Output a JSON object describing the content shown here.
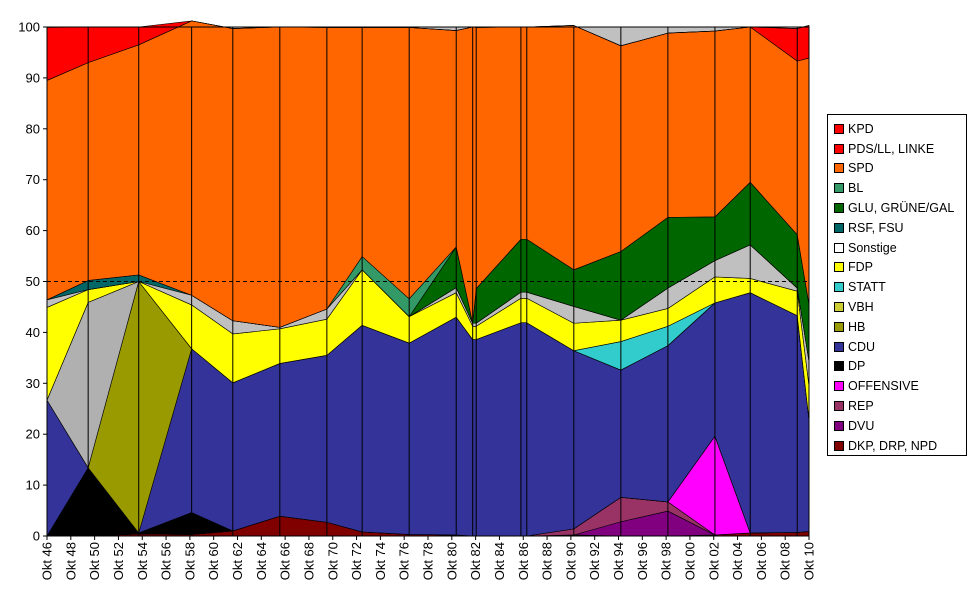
{
  "chart_data": {
    "type": "area",
    "stacked": true,
    "ylim": [
      0,
      100
    ],
    "yticks": [
      0,
      10,
      20,
      30,
      40,
      50,
      60,
      70,
      80,
      90,
      100
    ],
    "reference_line": 50,
    "x": [
      "Okt 46",
      "Okt 49",
      "Okt 53",
      "Okt 57",
      "Okt 61",
      "Okt 65",
      "Okt 69",
      "Okt 72",
      "Okt 76",
      "Okt 80",
      "Okt 82a",
      "Okt 82b",
      "Okt 86a",
      "Okt 86b",
      "Okt 90",
      "Okt 94",
      "Okt 98",
      "Okt 02",
      "Okt 05",
      "Okt 09",
      "Okt 10"
    ],
    "x_positions": [
      46,
      49.5,
      53.8,
      58.3,
      61.8,
      65.8,
      69.8,
      72.8,
      76.8,
      80.8,
      82.2,
      82.5,
      86.3,
      86.8,
      90.8,
      94.8,
      98.8,
      102.8,
      105.8,
      109.8,
      110.8
    ],
    "tick_labels": [
      "Okt 46",
      "Okt 48",
      "Okt 50",
      "Okt 52",
      "Okt 54",
      "Okt 56",
      "Okt 58",
      "Okt 60",
      "Okt 62",
      "Okt 64",
      "Okt 66",
      "Okt 68",
      "Okt 70",
      "Okt 72",
      "Okt 74",
      "Okt 76",
      "Okt 78",
      "Okt 80",
      "Okt 82",
      "Okt 84",
      "Okt 86",
      "Okt 88",
      "Okt 90",
      "Okt 92",
      "Okt 94",
      "Okt 96",
      "Okt 98",
      "Okt 00",
      "Okt 02",
      "Okt 04",
      "Okt 06",
      "Okt 08",
      "Okt 10"
    ],
    "series": [
      {
        "name": "DKP, DRP, NPD",
        "color": "#800000",
        "values": [
          0,
          0,
          0.4,
          0.3,
          1,
          3.9,
          2.7,
          0.8,
          0.3,
          0.2,
          0,
          0,
          0,
          0,
          0.2,
          0,
          0,
          0.2,
          0.6,
          0.7,
          0.9
        ]
      },
      {
        "name": "DVU",
        "color": "#800080",
        "values": [
          0,
          0,
          0,
          0,
          0,
          0,
          0,
          0,
          0,
          0,
          0,
          0,
          0,
          0,
          0,
          2.8,
          4.9,
          0,
          0,
          0,
          0
        ]
      },
      {
        "name": "REP",
        "color": "#993366",
        "values": [
          0,
          0,
          0,
          0,
          0,
          0,
          0,
          0,
          0,
          0,
          0,
          0,
          0,
          0,
          1.2,
          4.8,
          1.8,
          0,
          0,
          0,
          0
        ]
      },
      {
        "name": "OFFENSIVE",
        "color": "#ff00ff",
        "values": [
          0,
          0,
          0,
          0,
          0,
          0,
          0,
          0,
          0,
          0,
          0,
          0,
          0,
          0,
          0,
          0,
          0,
          19.4,
          0,
          0,
          0
        ]
      },
      {
        "name": "DP",
        "color": "#000000",
        "values": [
          0,
          13.4,
          0.2,
          4.3,
          0,
          0,
          0,
          0,
          0,
          0,
          0,
          0,
          0,
          0,
          0,
          0,
          0,
          0,
          0,
          0,
          0
        ]
      },
      {
        "name": "CDU",
        "color": "#333399",
        "values": [
          26.7,
          0,
          0,
          32.2,
          29.1,
          30,
          32.8,
          40.6,
          37.6,
          42.8,
          38.6,
          38.6,
          41.9,
          41.9,
          35,
          25,
          30.7,
          26.2,
          47.2,
          42.6,
          21.9
        ]
      },
      {
        "name": "HB",
        "color": "#999900",
        "values": [
          0,
          0,
          49.4,
          0,
          0,
          0,
          0,
          0,
          0,
          0,
          0,
          0,
          0,
          0,
          0,
          0,
          0,
          0,
          0,
          0,
          0
        ]
      },
      {
        "name": "VBH",
        "color": "#b0b0b0",
        "values": [
          0,
          32.5,
          0,
          0,
          0,
          0,
          0,
          0,
          0,
          0,
          0,
          0,
          0,
          0,
          0,
          0,
          0,
          0,
          0,
          0,
          0
        ]
      },
      {
        "name": "STATT",
        "color": "#33cccc",
        "values": [
          0,
          0,
          0,
          0,
          0,
          0,
          0,
          0,
          0,
          0,
          0,
          0,
          0,
          0,
          0,
          5.6,
          3.8,
          0,
          0,
          0,
          0
        ]
      },
      {
        "name": "FDP",
        "color": "#ffff00",
        "values": [
          18.2,
          2.5,
          0,
          8.6,
          9.6,
          6.8,
          7.1,
          10.9,
          5.2,
          4.8,
          2.6,
          2.6,
          4.8,
          4.8,
          5.4,
          4.2,
          3.5,
          5.1,
          2.8,
          4.8,
          6.7
        ]
      },
      {
        "name": "Sonstige",
        "color": "#c0c0c0",
        "values": [
          1.5,
          0,
          0,
          1.9,
          2.6,
          0.3,
          2,
          0,
          0,
          1,
          0.6,
          0.6,
          1.2,
          1.2,
          3.3,
          0,
          4,
          3.2,
          6.6,
          0.6,
          4.8
        ]
      },
      {
        "name": "RSF, FSU",
        "color": "#006666",
        "values": [
          0,
          1.8,
          1.3,
          0,
          0,
          0,
          0,
          0,
          0,
          0,
          0,
          0,
          0,
          0,
          0,
          0,
          0,
          0,
          0,
          0,
          0
        ]
      },
      {
        "name": "GLU, GRÜNE/GAL",
        "color": "#006600",
        "values": [
          0,
          0,
          0,
          0,
          0,
          0,
          0,
          0,
          0,
          8,
          0,
          6.8,
          10.4,
          10.4,
          7.2,
          13.5,
          13.9,
          8.6,
          12.3,
          10.5,
          11.2
        ]
      },
      {
        "name": "BL",
        "color": "#339966",
        "values": [
          0,
          0,
          0,
          0,
          0,
          0,
          0,
          2.6,
          3.5,
          0,
          0,
          0,
          0,
          0,
          0,
          0,
          0,
          0,
          0,
          0,
          0
        ]
      },
      {
        "name": "SPD",
        "color": "#ff6600",
        "values": [
          43.1,
          42.8,
          45.2,
          53.9,
          57.4,
          59,
          55.3,
          45,
          53.3,
          42.5,
          58.2,
          51.3,
          41.7,
          41.7,
          48,
          40.4,
          36.2,
          36.5,
          30.5,
          34.1,
          48.4
        ]
      },
      {
        "name": "PDS/LL, LINKE",
        "color": "#ff0000",
        "values": [
          0,
          0,
          0,
          0,
          0,
          0,
          0,
          0,
          0,
          0,
          0,
          0,
          0,
          0,
          0,
          0,
          0,
          0,
          0,
          6.4,
          6.4
        ]
      },
      {
        "name": "KPD",
        "color": "#ff0000",
        "values": [
          10.4,
          7,
          3.5,
          0,
          0,
          0,
          0,
          0,
          0,
          0,
          0,
          0,
          0,
          0,
          0,
          0,
          0,
          0,
          0,
          0,
          0
        ]
      }
    ],
    "legend": {
      "position": "right",
      "entries": [
        {
          "label": "KPD",
          "color": "#ff0000"
        },
        {
          "label": "PDS/LL, LINKE",
          "color": "#ff0000"
        },
        {
          "label": "SPD",
          "color": "#ff6600"
        },
        {
          "label": "BL",
          "color": "#339966"
        },
        {
          "label": "GLU, GRÜNE/GAL",
          "color": "#006600"
        },
        {
          "label": "RSF, FSU",
          "color": "#006666"
        },
        {
          "label": "Sonstige",
          "color": "#ffffff"
        },
        {
          "label": "FDP",
          "color": "#ffff00"
        },
        {
          "label": "STATT",
          "color": "#33cccc"
        },
        {
          "label": "VBH",
          "color": "#cccc33"
        },
        {
          "label": "HB",
          "color": "#999900"
        },
        {
          "label": "CDU",
          "color": "#333399"
        },
        {
          "label": "DP",
          "color": "#000000"
        },
        {
          "label": "OFFENSIVE",
          "color": "#ff00ff"
        },
        {
          "label": "REP",
          "color": "#993366"
        },
        {
          "label": "DVU",
          "color": "#800080"
        },
        {
          "label": "DKP, DRP, NPD",
          "color": "#800000"
        }
      ]
    }
  }
}
